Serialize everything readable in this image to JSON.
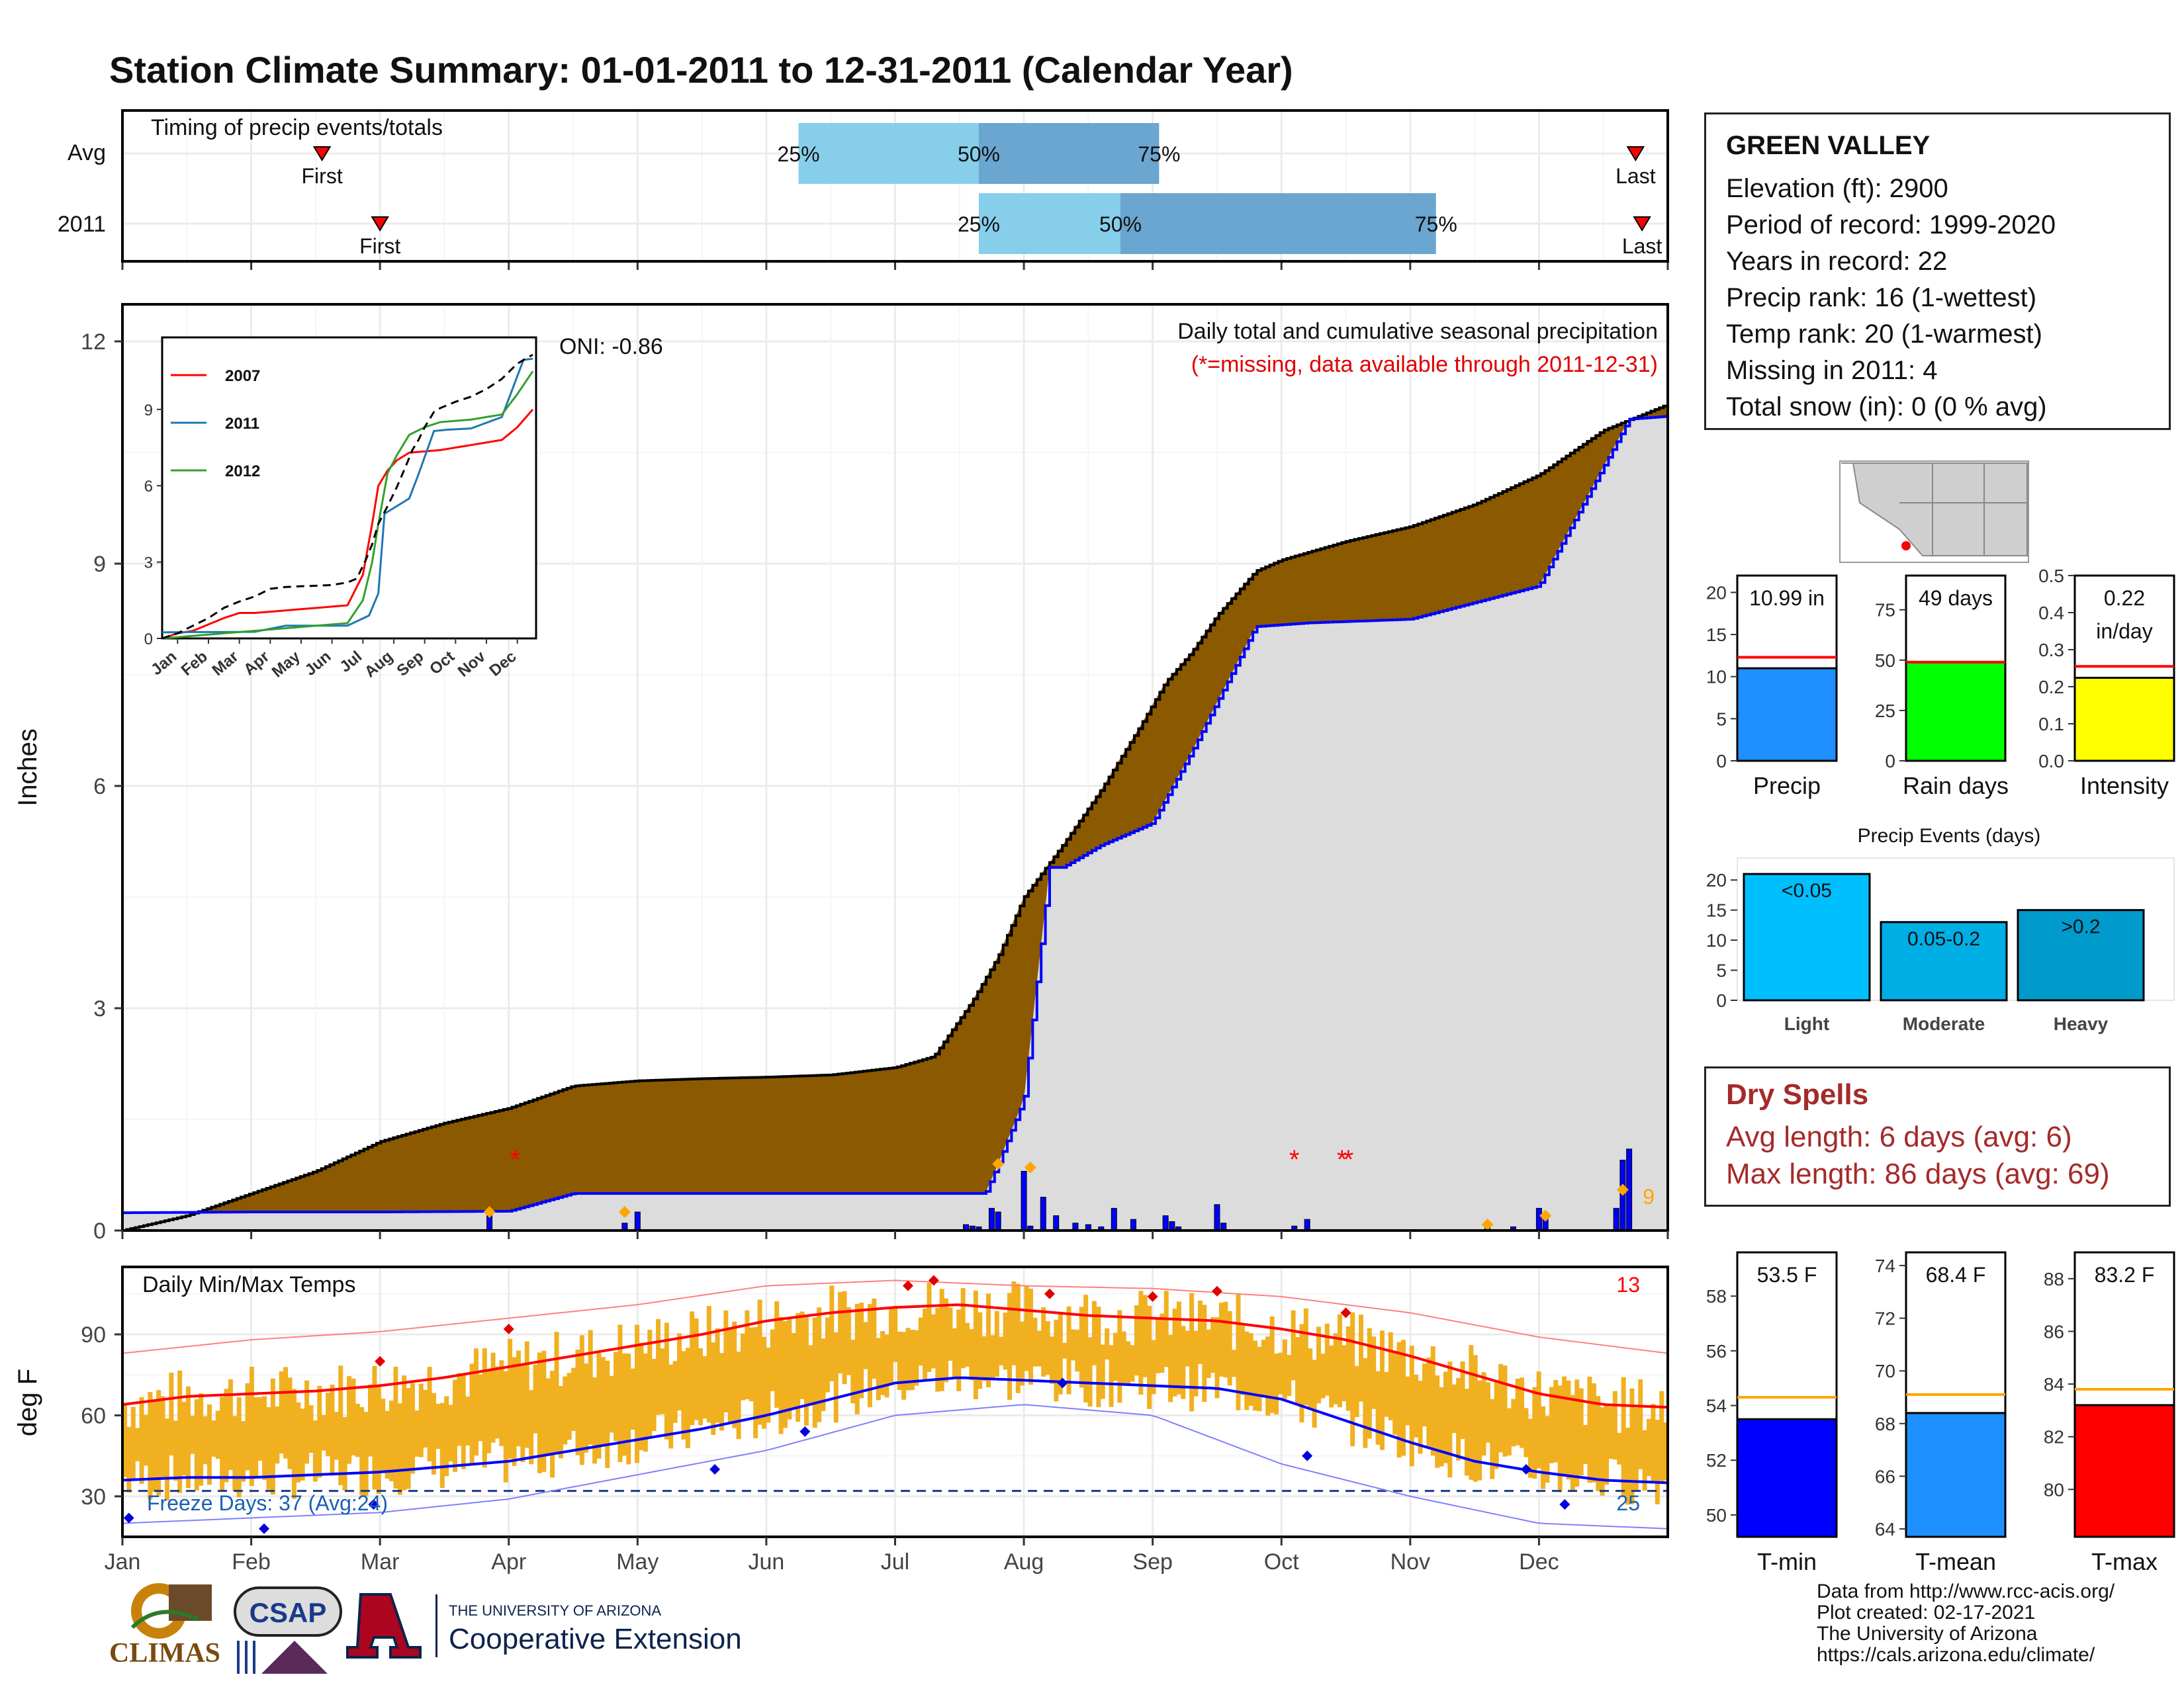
{
  "title": "Station Climate Summary: 01-01-2011 to 12-31-2011 (Calendar Year)",
  "colors": {
    "title": "#000080",
    "cum": "#8b5a00",
    "avg_fill": "#dcdcdc",
    "blue": "#0000ff",
    "orange": "#ffa500",
    "tmax": "#ff0000",
    "tmin": "#0000ff",
    "temp_bar": "#f0b020"
  },
  "timing": {
    "title": "Timing of precip events/totals",
    "rows": [
      {
        "label": "Avg",
        "first_label": "First",
        "last_label": "Last",
        "first": 1.55,
        "p25": 5.25,
        "p50": 6.65,
        "p75": 8.05,
        "last": 11.75,
        "p25_label": "25%",
        "p50_label": "50%",
        "p75_label": "75%"
      },
      {
        "label": "2011",
        "first_label": "First",
        "last_label": "Last",
        "first": 2.0,
        "p25": 6.65,
        "p50": 7.75,
        "p75": 10.2,
        "last": 11.8,
        "p25_label": "25%",
        "p50_label": "50%",
        "p75_label": "75%"
      }
    ]
  },
  "station": {
    "name": "GREEN VALLEY",
    "lines": [
      "Elevation (ft): 2900",
      "Period of record: 1999-2020",
      "Years in record: 22",
      "Precip rank: 16 (1-wettest)",
      "Temp rank: 20 (1-warmest)",
      "Missing in 2011: 4",
      "Total snow (in): 0 (0 % avg)"
    ]
  },
  "precip_panel": {
    "ylabel": "Inches",
    "title": "Daily total and cumulative seasonal precipitation",
    "subtitle": "(*=missing, data available through 2011-12-31)",
    "oni": "ONI: -0.86",
    "count_label": "9"
  },
  "inset": {
    "legend": [
      "2007",
      "2011",
      "2012"
    ],
    "months": [
      "Jan",
      "Feb",
      "Mar",
      "Apr",
      "May",
      "Jun",
      "Jul",
      "Aug",
      "Sep",
      "Oct",
      "Nov",
      "Dec"
    ]
  },
  "temp_panel": {
    "ylabel": "deg F",
    "title": "Daily Min/Max Temps",
    "max_count": "13",
    "freeze_label": "Freeze Days: 37 (Avg:24)",
    "min_count": "25"
  },
  "months": [
    "Jan",
    "Feb",
    "Mar",
    "Apr",
    "May",
    "Jun",
    "Jul",
    "Aug",
    "Sep",
    "Oct",
    "Nov",
    "Dec"
  ],
  "summary_bars": [
    {
      "label": "Precip",
      "value_text": "10.99 in",
      "value": 10.99,
      "avg": 12.3,
      "ylim": [
        0,
        22
      ],
      "ticks": [
        0,
        5,
        10,
        15,
        20
      ],
      "color": "#1e90ff"
    },
    {
      "label": "Rain days",
      "value_text": "49 days",
      "value": 49,
      "avg": 49,
      "ylim": [
        0,
        92
      ],
      "ticks": [
        0,
        25,
        50,
        75
      ],
      "color": "#00ff00"
    },
    {
      "label": "Intensity",
      "value_text": "0.22 in/day",
      "value": 0.224,
      "avg": 0.255,
      "ylim": [
        0,
        0.5
      ],
      "ticks": [
        "0.0",
        "0.1",
        "0.2",
        "0.3",
        "0.4",
        "0.5"
      ],
      "color": "#ffff00"
    }
  ],
  "events": {
    "title": "Precip Events (days)",
    "bars": [
      {
        "label": "Light",
        "value_label": "<0.05",
        "value": 21,
        "color": "#00bfff"
      },
      {
        "label": "Moderate",
        "value_label": "0.05-0.2",
        "value": 13,
        "color": "#00aee6"
      },
      {
        "label": "Heavy",
        "value_label": ">0.2",
        "value": 15,
        "color": "#009acd"
      }
    ],
    "ticks": [
      0,
      5,
      10,
      15,
      20
    ]
  },
  "dry_spells": {
    "title": "Dry Spells",
    "lines": [
      "Avg length: 6 days (avg: 6)",
      "Max length: 86 days (avg: 69)"
    ]
  },
  "temp_bars": [
    {
      "label": "T-min",
      "value_text": "53.5 F",
      "value": 53.5,
      "avg": 54.3,
      "ylim": [
        49.2,
        59.6
      ],
      "ticks": [
        50,
        52,
        54,
        56,
        58
      ],
      "color": "#0000ff"
    },
    {
      "label": "T-mean",
      "value_text": "68.4 F",
      "value": 68.4,
      "avg": 69.1,
      "ylim": [
        63.7,
        74.5
      ],
      "ticks": [
        64,
        66,
        68,
        70,
        72,
        74
      ],
      "color": "#1e90ff"
    },
    {
      "label": "T-max",
      "value_text": "83.2 F",
      "value": 83.2,
      "avg": 83.8,
      "ylim": [
        78.2,
        89.0
      ],
      "ticks": [
        80,
        82,
        84,
        86,
        88
      ],
      "color": "#ff0000"
    }
  ],
  "footer": {
    "climas": "CLIMAS",
    "csap": "CSAP",
    "ua_small": "THE UNIVERSITY OF ARIZONA",
    "ua_big": "Cooperative Extension",
    "credits": [
      "Data from http://www.rcc-acis.org/",
      "Plot created: 02-17-2021",
      "The University of Arizona",
      "https://cals.arizona.edu/climate/"
    ]
  },
  "chart_data": [
    {
      "type": "area",
      "title": "Daily total and cumulative seasonal precipitation",
      "ylabel": "Inches",
      "ylim": [
        0,
        12
      ],
      "x_unit": "month (0=Jan 1, 12=Dec 31)",
      "series": [
        {
          "name": "cumulative 2011",
          "x": [
            0,
            1,
            2,
            3,
            3.5,
            4,
            5,
            6,
            6.7,
            6.8,
            7,
            7.2,
            7.3,
            7.6,
            8,
            8.3,
            8.8,
            9.2,
            10,
            11,
            11.7,
            12
          ],
          "y": [
            0.24,
            0.25,
            0.25,
            0.26,
            0.5,
            0.5,
            0.5,
            0.5,
            0.5,
            0.9,
            1.77,
            4.9,
            4.9,
            5.2,
            5.5,
            6.45,
            8.15,
            8.2,
            8.25,
            8.7,
            10.95,
            10.99
          ]
        },
        {
          "name": "average",
          "x": [
            0,
            0.5,
            1,
            1.5,
            2,
            2.5,
            3,
            3.5,
            4,
            4.5,
            5,
            5.5,
            6,
            6.3,
            6.6,
            6.8,
            7,
            7.3,
            7.6,
            7.9,
            8.1,
            8.3,
            8.5,
            8.8,
            9,
            9.5,
            10,
            10.5,
            11,
            11.5,
            12
          ],
          "y": [
            0,
            0.2,
            0.5,
            0.8,
            1.2,
            1.45,
            1.65,
            1.95,
            2.02,
            2.05,
            2.07,
            2.1,
            2.2,
            2.35,
            3.1,
            3.7,
            4.5,
            5.2,
            5.95,
            6.8,
            7.4,
            7.8,
            8.3,
            8.9,
            9.05,
            9.3,
            9.5,
            9.8,
            10.2,
            10.8,
            11.15
          ]
        }
      ],
      "daily_precip_x": [
        2.85,
        3.9,
        4.0,
        6.55,
        6.6,
        6.65,
        6.75,
        6.8,
        7.0,
        7.05,
        7.15,
        7.25,
        7.4,
        7.5,
        7.6,
        7.7,
        7.85,
        8.1,
        8.15,
        8.2,
        8.5,
        8.55,
        9.1,
        9.2,
        10.6,
        10.8,
        11.0,
        11.05,
        11.6,
        11.65,
        11.7
      ],
      "daily_precip_y": [
        0.2,
        0.1,
        0.25,
        0.08,
        0.06,
        0.05,
        0.3,
        0.25,
        0.8,
        0.06,
        0.45,
        0.2,
        0.1,
        0.08,
        0.05,
        0.3,
        0.15,
        0.2,
        0.12,
        0.05,
        0.35,
        0.1,
        0.06,
        0.15,
        0.05,
        0.05,
        0.3,
        0.15,
        0.3,
        0.95,
        1.1
      ],
      "missing_x": [
        3.05,
        9.1,
        9.47,
        9.52
      ],
      "missing_y": [
        1.0,
        1.0,
        1.0,
        1.0
      ]
    },
    {
      "type": "line",
      "title": "",
      "ylim": [
        0,
        12
      ],
      "x_unit": "month",
      "series": [
        {
          "name": "2007",
          "x": [
            0,
            0.5,
            1,
            2,
            2.5,
            3,
            4,
            5,
            6,
            6.5,
            6.8,
            7,
            7.3,
            7.6,
            8,
            9,
            10,
            11,
            11.5,
            12
          ],
          "y": [
            0,
            0.2,
            0.3,
            0.8,
            1.0,
            1.0,
            1.1,
            1.2,
            1.3,
            2.5,
            4.5,
            6.0,
            6.6,
            7.0,
            7.3,
            7.4,
            7.6,
            7.8,
            8.3,
            9.0
          ]
        },
        {
          "name": "2011",
          "x": [
            0,
            1,
            2,
            3,
            4,
            5,
            6,
            6.7,
            7,
            7.2,
            7.6,
            8,
            8.3,
            8.8,
            9.2,
            10,
            11,
            11.7,
            12
          ],
          "y": [
            0.24,
            0.25,
            0.25,
            0.26,
            0.5,
            0.5,
            0.5,
            0.9,
            1.77,
            4.9,
            5.2,
            5.5,
            6.45,
            8.15,
            8.2,
            8.25,
            8.7,
            10.95,
            10.99
          ]
        },
        {
          "name": "2012",
          "x": [
            0,
            1,
            2,
            3,
            4,
            5,
            6,
            6.5,
            6.8,
            7,
            7.3,
            7.6,
            8,
            8.5,
            9,
            10,
            11,
            11.5,
            12
          ],
          "y": [
            0,
            0.1,
            0.2,
            0.3,
            0.4,
            0.5,
            0.6,
            1.5,
            3.0,
            4.5,
            6.5,
            7.2,
            8.0,
            8.3,
            8.5,
            8.6,
            8.8,
            9.6,
            10.5
          ]
        },
        {
          "name": "average",
          "x": [
            0,
            0.5,
            1,
            1.5,
            2,
            2.5,
            3,
            3.5,
            4,
            4.5,
            5,
            5.5,
            6,
            6.3,
            6.6,
            6.8,
            7,
            7.3,
            7.6,
            7.9,
            8.1,
            8.3,
            8.5,
            8.8,
            9,
            9.5,
            10,
            10.5,
            11,
            11.5,
            12
          ],
          "y": [
            0,
            0.2,
            0.5,
            0.8,
            1.2,
            1.45,
            1.65,
            1.95,
            2.02,
            2.05,
            2.07,
            2.1,
            2.2,
            2.35,
            3.1,
            3.7,
            4.5,
            5.2,
            5.95,
            6.8,
            7.4,
            7.8,
            8.3,
            8.9,
            9.05,
            9.3,
            9.5,
            9.8,
            10.2,
            10.8,
            11.15
          ]
        }
      ]
    },
    {
      "type": "line",
      "title": "Daily Min/Max Temps",
      "ylabel": "deg F",
      "ylim": [
        15,
        115
      ],
      "x_unit": "month",
      "series": [
        {
          "name": "avg max",
          "x": [
            0,
            0.5,
            1,
            1.5,
            2,
            2.5,
            3,
            3.5,
            4,
            4.5,
            5,
            5.5,
            6,
            6.5,
            7,
            7.5,
            8,
            8.5,
            9,
            9.5,
            10,
            10.5,
            11,
            11.5,
            12
          ],
          "y": [
            64,
            67,
            68,
            69,
            71,
            74,
            78,
            82,
            86,
            90,
            95,
            98,
            100,
            101,
            99,
            97,
            96,
            95,
            92,
            88,
            82,
            75,
            68,
            64,
            63
          ]
        },
        {
          "name": "avg min",
          "x": [
            0,
            0.5,
            1,
            1.5,
            2,
            2.5,
            3,
            3.5,
            4,
            4.5,
            5,
            5.5,
            6,
            6.5,
            7,
            7.5,
            8,
            8.5,
            9,
            9.5,
            10,
            10.5,
            11,
            11.5,
            12
          ],
          "y": [
            36,
            37,
            37,
            38,
            39,
            41,
            43,
            47,
            51,
            55,
            60,
            66,
            72,
            74,
            73,
            72,
            71,
            70,
            66,
            58,
            50,
            43,
            39,
            36,
            35
          ]
        },
        {
          "name": "record max",
          "x": [
            0,
            1,
            2,
            3,
            4,
            5,
            6,
            7,
            8,
            9,
            10,
            11,
            12
          ],
          "y": [
            83,
            88,
            91,
            96,
            101,
            108,
            110,
            108,
            107,
            104,
            98,
            89,
            83
          ]
        },
        {
          "name": "record min",
          "x": [
            0,
            1,
            2,
            3,
            4,
            5,
            6,
            7,
            8,
            9,
            10,
            11,
            12
          ],
          "y": [
            20,
            22,
            24,
            29,
            38,
            47,
            60,
            64,
            60,
            42,
            30,
            20,
            18
          ]
        }
      ],
      "freeze_line": 32
    }
  ]
}
